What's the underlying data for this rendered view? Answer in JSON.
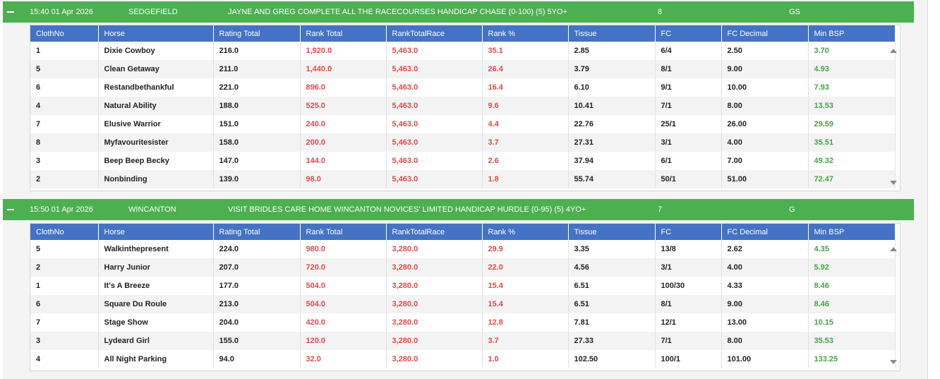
{
  "columns": [
    "ClothNo",
    "Horse",
    "Rating Total",
    "Rank Total",
    "RankTotalRace",
    "Rank %",
    "Tissue",
    "FC",
    "FC Decimal",
    "Min BSP"
  ],
  "races": [
    {
      "time": "15:40 01 Apr 2026",
      "course": "SEDGEFIELD",
      "name": "JAYNE AND GREG COMPLETE ALL THE RACECOURSES HANDICAP CHASE (0-100) (5) 5YO+",
      "runners": "8",
      "going": "GS",
      "rows": [
        [
          "1",
          "Dixie Cowboy",
          "216.0",
          "1,920.0",
          "5,463.0",
          "35.1",
          "2.85",
          "6/4",
          "2.50",
          "3.70"
        ],
        [
          "5",
          "Clean Getaway",
          "211.0",
          "1,440.0",
          "5,463.0",
          "26.4",
          "3.79",
          "8/1",
          "9.00",
          "4.93"
        ],
        [
          "6",
          "Restandbethankful",
          "221.0",
          "896.0",
          "5,463.0",
          "16.4",
          "6.10",
          "9/1",
          "10.00",
          "7.93"
        ],
        [
          "4",
          "Natural Ability",
          "188.0",
          "525.0",
          "5,463.0",
          "9.6",
          "10.41",
          "7/1",
          "8.00",
          "13.53"
        ],
        [
          "7",
          "Elusive Warrior",
          "151.0",
          "240.0",
          "5,463.0",
          "4.4",
          "22.76",
          "25/1",
          "26.00",
          "29.59"
        ],
        [
          "8",
          "Myfavouritesister",
          "158.0",
          "200.0",
          "5,463.0",
          "3.7",
          "27.31",
          "3/1",
          "4.00",
          "35.51"
        ],
        [
          "3",
          "Beep Beep Becky",
          "147.0",
          "144.0",
          "5,463.0",
          "2.6",
          "37.94",
          "6/1",
          "7.00",
          "49.32"
        ],
        [
          "2",
          "Nonbinding",
          "139.0",
          "98.0",
          "5,463.0",
          "1.8",
          "55.74",
          "50/1",
          "51.00",
          "72.47"
        ]
      ]
    },
    {
      "time": "15:50 01 Apr 2026",
      "course": "WINCANTON",
      "name": "VISIT BRIDLES CARE HOME WINCANTON NOVICES' LIMITED HANDICAP HURDLE (0-95) (5) 4YO+",
      "runners": "7",
      "going": "G",
      "rows": [
        [
          "5",
          "Walkinthepresent",
          "224.0",
          "980.0",
          "3,280.0",
          "29.9",
          "3.35",
          "13/8",
          "2.62",
          "4.35"
        ],
        [
          "2",
          "Harry Junior",
          "207.0",
          "720.0",
          "3,280.0",
          "22.0",
          "4.56",
          "3/1",
          "4.00",
          "5.92"
        ],
        [
          "1",
          "It's A Breeze",
          "177.0",
          "504.0",
          "3,280.0",
          "15.4",
          "6.51",
          "100/30",
          "4.33",
          "8.46"
        ],
        [
          "6",
          "Square Du Roule",
          "213.0",
          "504.0",
          "3,280.0",
          "15.4",
          "6.51",
          "8/1",
          "9.00",
          "8.46"
        ],
        [
          "7",
          "Stage Show",
          "204.0",
          "420.0",
          "3,280.0",
          "12.8",
          "7.81",
          "12/1",
          "13.00",
          "10.15"
        ],
        [
          "3",
          "Lydeard Girl",
          "155.0",
          "120.0",
          "3,280.0",
          "3.7",
          "27.33",
          "7/1",
          "8.00",
          "35.53"
        ],
        [
          "4",
          "All Night Parking",
          "94.0",
          "32.0",
          "3,280.0",
          "1.0",
          "102.50",
          "100/1",
          "101.00",
          "133.25"
        ]
      ]
    }
  ],
  "colors": {
    "header_green": "#4caf50",
    "column_blue": "#4472c4",
    "rank_red": "#e04a4a",
    "bsp_green": "#45a545"
  },
  "icons": {
    "collapse": "minus-icon",
    "scroll_up": "triangle-up-icon",
    "scroll_down": "triangle-down-icon"
  }
}
